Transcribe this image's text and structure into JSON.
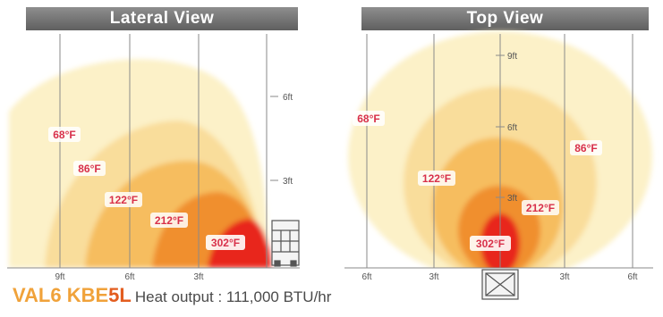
{
  "lateral_view": {
    "title": "Lateral View",
    "height_labels": [
      "6ft",
      "3ft"
    ],
    "distance_labels": [
      "9ft",
      "6ft",
      "3ft"
    ],
    "zones": [
      "68°F",
      "86°F",
      "122°F",
      "212°F",
      "302°F"
    ]
  },
  "top_view": {
    "title": "Top View",
    "depth_labels": [
      "9ft",
      "6ft",
      "3ft"
    ],
    "width_labels": [
      "6ft",
      "3ft",
      "3ft",
      "6ft"
    ],
    "zones": [
      "68°F",
      "86°F",
      "122°F",
      "212°F",
      "302°F"
    ]
  },
  "footer": {
    "model_prefix": "VAL6 KBE",
    "model_highlight": "5L",
    "heat_output": "Heat output : 111,000 BTU/hr"
  },
  "colors": {
    "zone_68": "#fcf1c8",
    "zone_86": "#f9dd9b",
    "zone_122": "#f6bd5e",
    "zone_212": "#f08f2e",
    "zone_302": "#e8271d",
    "label_text": "#d8304a",
    "model_orange": "#f0a23a",
    "model_highlight": "#e35d1f"
  }
}
